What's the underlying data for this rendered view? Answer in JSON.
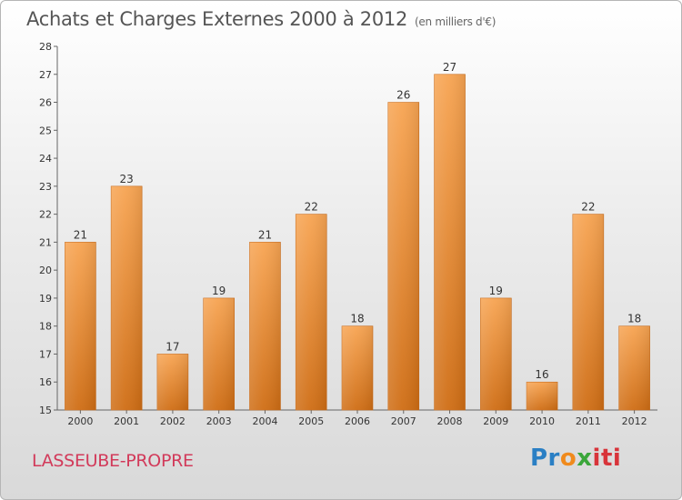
{
  "header": {
    "title": "Achats et Charges Externes 2000 à 2012",
    "subtitle": "(en milliers d'€)"
  },
  "footer": {
    "commune": "LASSEUBE-PROPRE",
    "logo": {
      "letters": [
        "Pr",
        "o",
        "x",
        "iti"
      ],
      "colors": [
        "#2a7fc4",
        "#f08a1c",
        "#3aa63a",
        "#d8343a"
      ]
    }
  },
  "chart_data": {
    "type": "bar",
    "title": "Achats et Charges Externes 2000 à 2012",
    "subtitle": "(en milliers d'€)",
    "categories": [
      "2000",
      "2001",
      "2002",
      "2003",
      "2004",
      "2005",
      "2006",
      "2007",
      "2008",
      "2009",
      "2010",
      "2011",
      "2012"
    ],
    "values": [
      21,
      23,
      17,
      19,
      21,
      22,
      18,
      26,
      27,
      19,
      16,
      22,
      18
    ],
    "ylim": [
      15,
      28
    ],
    "yticks": [
      15,
      16,
      17,
      18,
      19,
      20,
      21,
      22,
      23,
      24,
      25,
      26,
      27,
      28
    ],
    "grid": false,
    "data_labels": true,
    "bar_color": "#e8872e"
  }
}
